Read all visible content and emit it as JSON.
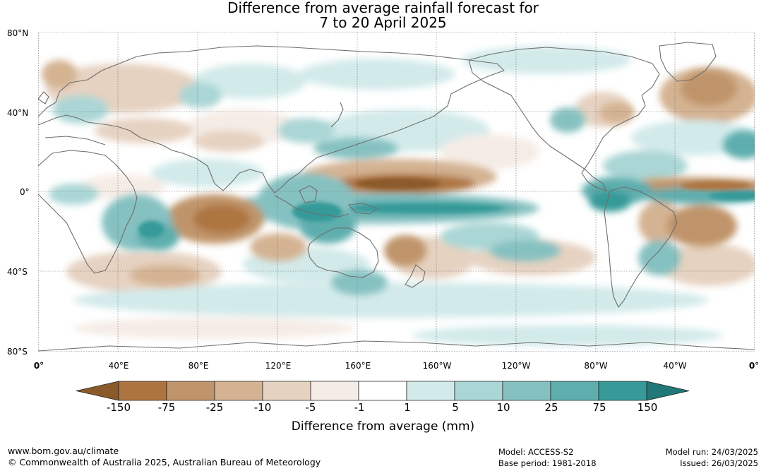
{
  "title": {
    "line1": "Difference from average rainfall forecast for",
    "line2": "7 to 20 April 2025"
  },
  "map": {
    "lat_labels": [
      "80°N",
      "40°N",
      "0°",
      "40°S",
      "80°S"
    ],
    "lon_labels": [
      "0°",
      "40°E",
      "80°E",
      "120°E",
      "160°E",
      "160°W",
      "120°W",
      "80°W",
      "40°W",
      "0°"
    ],
    "colors": {
      "land_outline": "#6e6e6e",
      "grid": "#6e6e6e"
    }
  },
  "legend": {
    "title": "Difference from average (mm)",
    "ticks": [
      "-150",
      "-75",
      "-25",
      "-10",
      "-5",
      "-1",
      "1",
      "5",
      "10",
      "25",
      "75",
      "150"
    ],
    "colors": [
      "#8b5a2b",
      "#ad7440",
      "#c0946a",
      "#d4b393",
      "#e6d2c1",
      "#f5ece6",
      "#ffffff",
      "#d3eaea",
      "#aad6d5",
      "#86c1c1",
      "#5faeae",
      "#359a98",
      "#207879"
    ]
  },
  "footer": {
    "url": "www.bom.gov.au/climate",
    "copyright": "© Commonwealth of Australia 2025, Australian Bureau of Meteorology",
    "model": "Model: ACCESS-S2",
    "base_period": "Base period: 1981-2018",
    "model_run": "Model run: 24/03/2025",
    "issued": "Issued: 26/03/2025"
  }
}
